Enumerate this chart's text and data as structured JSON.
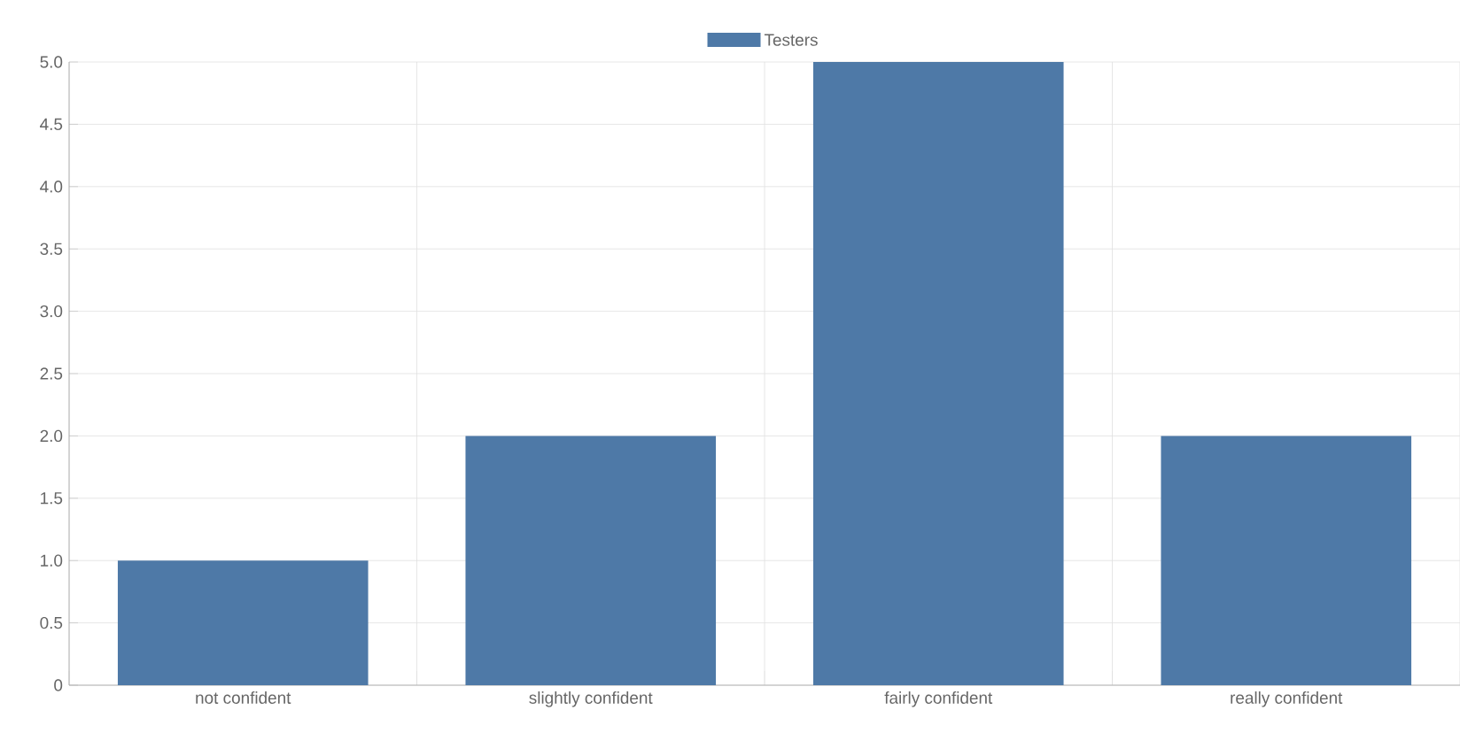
{
  "chart_data": {
    "type": "bar",
    "categories": [
      "not confident",
      "slightly confident",
      "fairly confident",
      "really confident"
    ],
    "series": [
      {
        "name": "Testers",
        "color": "#4e79a7",
        "values": [
          1,
          2,
          5,
          2
        ]
      }
    ],
    "ylim": [
      0,
      5
    ],
    "yticks": [
      0,
      {
        "value": 0.5,
        "label": "0.5"
      },
      {
        "value": 1,
        "label": "1.0"
      },
      {
        "value": 1.5,
        "label": "1.5"
      },
      {
        "value": 2,
        "label": "2.0"
      },
      {
        "value": 2.5,
        "label": "2.5"
      },
      {
        "value": 3,
        "label": "3.0"
      },
      {
        "value": 3.5,
        "label": "3.5"
      },
      {
        "value": 4,
        "label": "4.0"
      },
      {
        "value": 4.5,
        "label": "4.5"
      },
      {
        "value": 5,
        "label": "5.0"
      }
    ],
    "grid": true,
    "legend": "top"
  }
}
